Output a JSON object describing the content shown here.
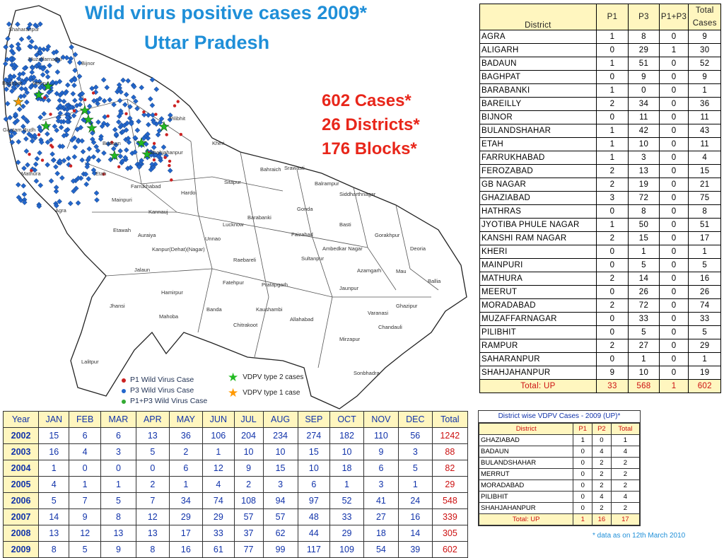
{
  "title": {
    "line1": "Wild virus positive cases 2009*",
    "line2": "Uttar Pradesh"
  },
  "stats": {
    "cases": "602 Cases*",
    "districts": "26 Districts*",
    "blocks": "176 Blocks*"
  },
  "map_labels": [
    {
      "key": "saharanpur",
      "text": "Shaharanpur"
    },
    {
      "key": "muzaffarnagar",
      "text": "Muzaffarnagar"
    },
    {
      "key": "bijnor",
      "text": "Bijnor"
    },
    {
      "key": "meerut",
      "text": "Meerut"
    },
    {
      "key": "baghpat",
      "text": "Baghpat"
    },
    {
      "key": "pilibhit",
      "text": "Pilibhit"
    },
    {
      "key": "gautambudh",
      "text": "Gautam Budh"
    },
    {
      "key": "kheri",
      "text": "Kheri"
    },
    {
      "key": "shahjahanpur",
      "text": "Shahjahanpur"
    },
    {
      "key": "budaun",
      "text": "Budaun"
    },
    {
      "key": "bahraich",
      "text": "Bahraich"
    },
    {
      "key": "shrawasti",
      "text": "Srawasti"
    },
    {
      "key": "balrampur",
      "text": "Balrampur"
    },
    {
      "key": "siddharthnagar",
      "text": "Siddharthnagar"
    },
    {
      "key": "sitapur",
      "text": "Sitapur"
    },
    {
      "key": "hardoi",
      "text": "Hardoi"
    },
    {
      "key": "farrukhabad",
      "text": "Farrukhabad"
    },
    {
      "key": "etah",
      "text": "Etah"
    },
    {
      "key": "mathura",
      "text": "Mathura"
    },
    {
      "key": "agra",
      "text": "Agra"
    },
    {
      "key": "mainpuri",
      "text": "Mainpuri"
    },
    {
      "key": "kannauj",
      "text": "Kannauj"
    },
    {
      "key": "barabanki",
      "text": "Barabanki"
    },
    {
      "key": "gonda",
      "text": "Gonda"
    },
    {
      "key": "basti",
      "text": "Basti"
    },
    {
      "key": "gorakhpur",
      "text": "Gorakhpur"
    },
    {
      "key": "lucknow",
      "text": "Lucknow"
    },
    {
      "key": "unnao",
      "text": "Unnao"
    },
    {
      "key": "faizabad",
      "text": "Faizabad"
    },
    {
      "key": "ambedkarnagar",
      "text": "Ambedkar Nagar"
    },
    {
      "key": "etawah",
      "text": "Etawah"
    },
    {
      "key": "auraiya",
      "text": "Auraiya"
    },
    {
      "key": "kanpur",
      "text": "Kanpur(Dehat)(Nagar)"
    },
    {
      "key": "raebareli",
      "text": "Raebareli"
    },
    {
      "key": "sultanpur",
      "text": "Sultanpur"
    },
    {
      "key": "azamgarh",
      "text": "Azamgarh"
    },
    {
      "key": "deoria",
      "text": "Deoria"
    },
    {
      "key": "mau",
      "text": "Mau"
    },
    {
      "key": "ballia",
      "text": "Ballia"
    },
    {
      "key": "jalaun",
      "text": "Jalaun"
    },
    {
      "key": "fatehpur",
      "text": "Fatehpur"
    },
    {
      "key": "pratapgarh",
      "text": "Pratapgarh"
    },
    {
      "key": "jaunpur",
      "text": "Jaunpur"
    },
    {
      "key": "ghazipur",
      "text": "Ghazipur"
    },
    {
      "key": "hamirpur",
      "text": "Hamirpur"
    },
    {
      "key": "banda",
      "text": "Banda"
    },
    {
      "key": "kaushambi",
      "text": "Kaushambi"
    },
    {
      "key": "allahabad",
      "text": "Allahabad"
    },
    {
      "key": "varanasi",
      "text": "Varanasi"
    },
    {
      "key": "chandauli",
      "text": "Chandauli"
    },
    {
      "key": "jhansi",
      "text": "Jhansi"
    },
    {
      "key": "mahoba",
      "text": "Mahoba"
    },
    {
      "key": "chitrakoot",
      "text": "Chitrakoot"
    },
    {
      "key": "mirzapur",
      "text": "Mirzapur"
    },
    {
      "key": "lalitpur",
      "text": "Lalitpur"
    },
    {
      "key": "sonbhadra",
      "text": "Sonbhadra"
    }
  ],
  "legend": {
    "p1": "P1 Wild Virus Case",
    "p3": "P3 Wild Virus Case",
    "p1p3": "P1+P3 Wild Virus Case",
    "vdpv2": "VDPV type 2 cases",
    "vdpv1": "VDPV type 1 case",
    "colors": {
      "p1": "#cc2222",
      "p3": "#2266cc",
      "p1p3": "#33aa33",
      "vdpv2": "#22bb22",
      "vdpv1": "#ff9900"
    }
  },
  "district_table": {
    "headers": [
      "District",
      "P1",
      "P3",
      "P1+P3",
      "Total Cases"
    ],
    "rows": [
      [
        "AGRA",
        "1",
        "8",
        "0",
        "9"
      ],
      [
        "ALIGARH",
        "0",
        "29",
        "1",
        "30"
      ],
      [
        "BADAUN",
        "1",
        "51",
        "0",
        "52"
      ],
      [
        "BAGHPAT",
        "0",
        "9",
        "0",
        "9"
      ],
      [
        "BARABANKI",
        "1",
        "0",
        "0",
        "1"
      ],
      [
        "BAREILLY",
        "2",
        "34",
        "0",
        "36"
      ],
      [
        "BIJNOR",
        "0",
        "11",
        "0",
        "11"
      ],
      [
        "BULANDSHAHAR",
        "1",
        "42",
        "0",
        "43"
      ],
      [
        "ETAH",
        "1",
        "10",
        "0",
        "11"
      ],
      [
        "FARRUKHABAD",
        "1",
        "3",
        "0",
        "4"
      ],
      [
        "FEROZABAD",
        "2",
        "13",
        "0",
        "15"
      ],
      [
        "GB NAGAR",
        "2",
        "19",
        "0",
        "21"
      ],
      [
        "GHAZIABAD",
        "3",
        "72",
        "0",
        "75"
      ],
      [
        "HATHRAS",
        "0",
        "8",
        "0",
        "8"
      ],
      [
        "JYOTIBA PHULE NAGAR",
        "1",
        "50",
        "0",
        "51"
      ],
      [
        "KANSHI RAM NAGAR",
        "2",
        "15",
        "0",
        "17"
      ],
      [
        "KHERI",
        "0",
        "1",
        "0",
        "1"
      ],
      [
        "MAINPURI",
        "0",
        "5",
        "0",
        "5"
      ],
      [
        "MATHURA",
        "2",
        "14",
        "0",
        "16"
      ],
      [
        "MEERUT",
        "0",
        "26",
        "0",
        "26"
      ],
      [
        "MORADABAD",
        "2",
        "72",
        "0",
        "74"
      ],
      [
        "MUZAFFARNAGAR",
        "0",
        "33",
        "0",
        "33"
      ],
      [
        "PILIBHIT",
        "0",
        "5",
        "0",
        "5"
      ],
      [
        "RAMPUR",
        "2",
        "27",
        "0",
        "29"
      ],
      [
        "SAHARANPUR",
        "0",
        "1",
        "0",
        "1"
      ],
      [
        "SHAHJAHANPUR",
        "9",
        "10",
        "0",
        "19"
      ]
    ],
    "total": [
      "Total: UP",
      "33",
      "568",
      "1",
      "602"
    ]
  },
  "year_table": {
    "headers": [
      "Year",
      "JAN",
      "FEB",
      "MAR",
      "APR",
      "MAY",
      "JUN",
      "JUL",
      "AUG",
      "SEP",
      "OCT",
      "NOV",
      "DEC",
      "Total"
    ],
    "rows": [
      [
        "2002",
        "15",
        "6",
        "6",
        "13",
        "36",
        "106",
        "204",
        "234",
        "274",
        "182",
        "110",
        "56",
        "1242"
      ],
      [
        "2003",
        "16",
        "4",
        "3",
        "5",
        "2",
        "1",
        "10",
        "10",
        "15",
        "10",
        "9",
        "3",
        "88"
      ],
      [
        "2004",
        "1",
        "0",
        "0",
        "0",
        "6",
        "12",
        "9",
        "15",
        "10",
        "18",
        "6",
        "5",
        "82"
      ],
      [
        "2005",
        "4",
        "1",
        "1",
        "2",
        "1",
        "4",
        "2",
        "3",
        "6",
        "1",
        "3",
        "1",
        "29"
      ],
      [
        "2006",
        "5",
        "7",
        "5",
        "7",
        "34",
        "74",
        "108",
        "94",
        "97",
        "52",
        "41",
        "24",
        "548"
      ],
      [
        "2007",
        "14",
        "9",
        "8",
        "12",
        "29",
        "29",
        "57",
        "57",
        "48",
        "33",
        "27",
        "16",
        "339"
      ],
      [
        "2008",
        "13",
        "12",
        "13",
        "13",
        "17",
        "33",
        "37",
        "62",
        "44",
        "29",
        "18",
        "14",
        "305"
      ],
      [
        "2009",
        "8",
        "5",
        "9",
        "8",
        "16",
        "61",
        "77",
        "99",
        "117",
        "109",
        "54",
        "39",
        "602"
      ]
    ]
  },
  "vdpv_table": {
    "title": "District wise VDPV Cases - 2009 (UP)*",
    "headers": [
      "District",
      "P1",
      "P2",
      "Total"
    ],
    "rows": [
      [
        "GHAZIABAD",
        "1",
        "0",
        "1"
      ],
      [
        "BADAUN",
        "0",
        "4",
        "4"
      ],
      [
        "BULANDSHAHAR",
        "0",
        "2",
        "2"
      ],
      [
        "MERRUT",
        "0",
        "2",
        "2"
      ],
      [
        "MORADABAD",
        "0",
        "2",
        "2"
      ],
      [
        "PILIBHIT",
        "0",
        "4",
        "4"
      ],
      [
        "SHAHJAHANPUR",
        "0",
        "2",
        "2"
      ]
    ],
    "total": [
      "Total: UP",
      "1",
      "16",
      "17"
    ]
  },
  "footnote": "* data as on 12th March 2010"
}
